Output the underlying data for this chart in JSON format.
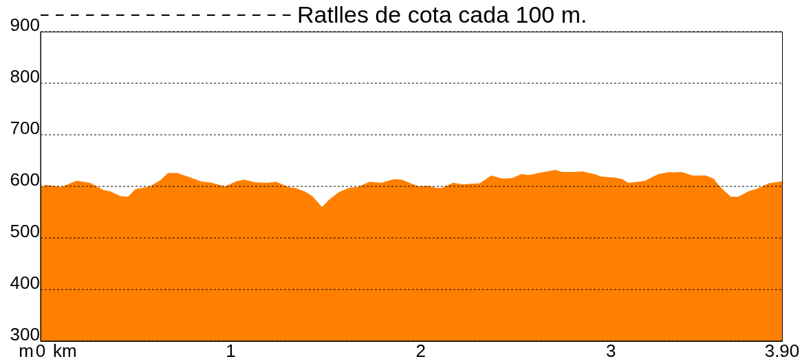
{
  "chart_data": {
    "type": "area",
    "title": "Ratlles de cota cada 100 m.",
    "xlabel": "km",
    "ylabel": "m",
    "x": [
      0,
      0.03,
      0.07,
      0.11,
      0.19,
      0.26,
      0.29,
      0.33,
      0.37,
      0.42,
      0.46,
      0.5,
      0.55,
      0.58,
      0.63,
      0.67,
      0.72,
      0.79,
      0.84,
      0.9,
      0.97,
      1.03,
      1.07,
      1.13,
      1.19,
      1.24,
      1.27,
      1.31,
      1.34,
      1.39,
      1.43,
      1.48,
      1.52,
      1.57,
      1.62,
      1.67,
      1.73,
      1.79,
      1.86,
      1.9,
      1.96,
      1.99,
      2.04,
      2.08,
      2.11,
      2.17,
      2.22,
      2.26,
      2.31,
      2.37,
      2.43,
      2.48,
      2.53,
      2.57,
      2.62,
      2.71,
      2.74,
      2.81,
      2.85,
      2.92,
      2.95,
      3.02,
      3.06,
      3.09,
      3.12,
      3.18,
      3.25,
      3.31,
      3.33,
      3.37,
      3.43,
      3.5,
      3.54,
      3.57,
      3.63,
      3.67,
      3.72,
      3.78,
      3.83,
      3.9
    ],
    "values": [
      598,
      603,
      601,
      599,
      611,
      607,
      601,
      593,
      590,
      581,
      580,
      595,
      598,
      601,
      612,
      626,
      626,
      617,
      610,
      607,
      600,
      610,
      613,
      608,
      607,
      609,
      604,
      598,
      597,
      590,
      581,
      560,
      575,
      589,
      597,
      599,
      609,
      607,
      614,
      613,
      604,
      600,
      601,
      597,
      597,
      607,
      604,
      605,
      606,
      621,
      615,
      616,
      624,
      622,
      626,
      632,
      628,
      628,
      629,
      623,
      619,
      617,
      614,
      607,
      608,
      611,
      624,
      628,
      627,
      628,
      621,
      621,
      615,
      601,
      580,
      580,
      590,
      597,
      606,
      610
    ],
    "color": "#ff8000",
    "xlim": [
      0,
      3.9
    ],
    "xticks": [
      0,
      1,
      2,
      3,
      {
        "value": 3.9,
        "label": "3.90"
      }
    ],
    "ylim": [
      300,
      900
    ],
    "yticks": [
      300,
      400,
      500,
      600,
      700,
      800,
      900
    ],
    "grid": "y"
  }
}
